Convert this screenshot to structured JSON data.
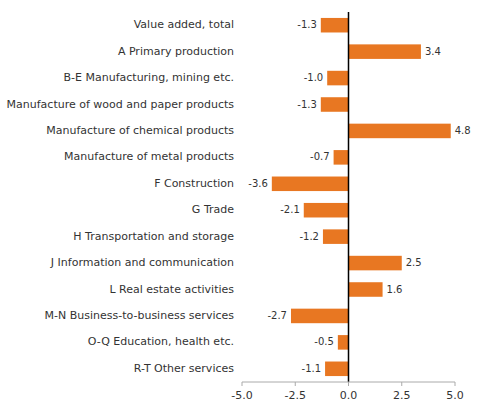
{
  "chart_data": {
    "type": "bar",
    "orientation": "horizontal",
    "categories": [
      "R-T Other services",
      "O-Q Education, health etc.",
      "M-N Business-to-business services",
      "L Real estate activities",
      "J Information and communication",
      "H Transportation and storage",
      "G Trade",
      "F Construction",
      "Manufacture of metal products",
      "Manufacture of chemical products",
      "Manufacture of wood and paper products",
      "B-E Manufacturing, mining etc.",
      "A Primary production",
      "Value added, total"
    ],
    "values": [
      -1.1,
      -0.5,
      -2.7,
      1.6,
      2.5,
      -1.2,
      -2.1,
      -3.6,
      -0.7,
      4.8,
      -1.3,
      -1.0,
      3.4,
      -1.3
    ],
    "value_labels": [
      "-1.1",
      "-0.5",
      "-2.7",
      "1.6",
      "2.5",
      "-1.2",
      "-2.1",
      "-3.6",
      "-0.7",
      "4.8",
      "-1.3",
      "-1.0",
      "3.4",
      "-1.3"
    ],
    "color": "#E87722",
    "xlim": [
      -5.0,
      5.0
    ],
    "xticks": [
      {
        "value": -5.0,
        "label": "-5.0"
      },
      -2.5,
      {
        "value": 0.0,
        "label": "0.0"
      },
      2.5,
      {
        "value": 5.0,
        "label": "5.0"
      }
    ],
    "grid": false,
    "data_labels": true
  }
}
